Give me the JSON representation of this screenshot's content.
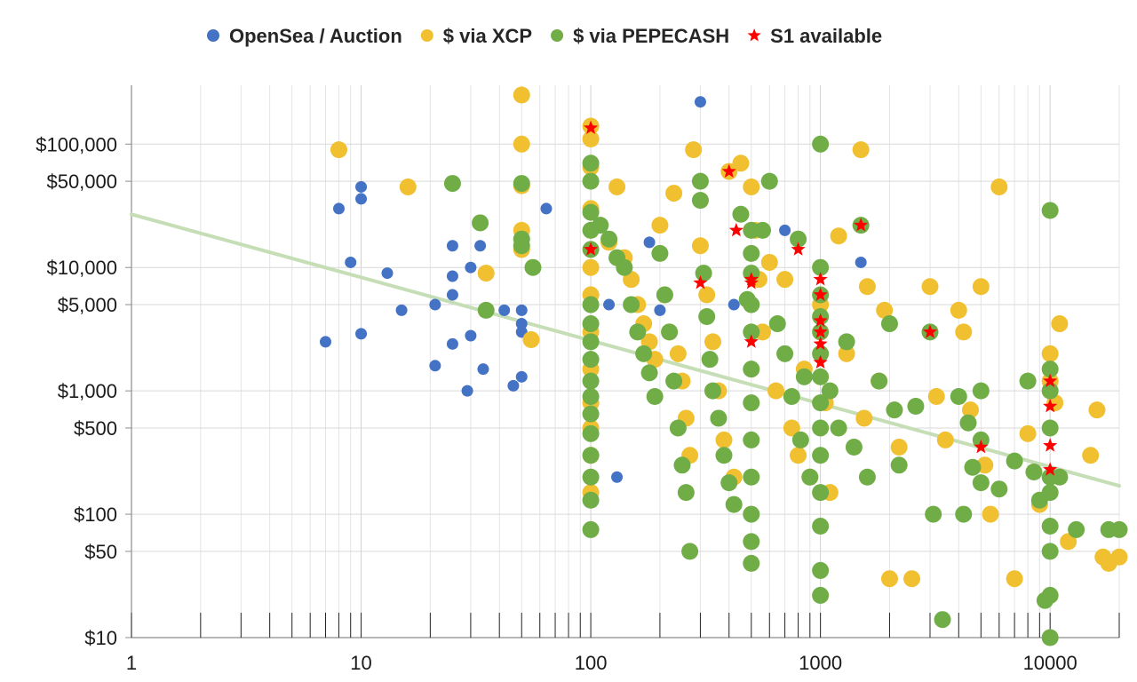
{
  "chart_data": {
    "type": "scatter",
    "title": "",
    "xlabel": "",
    "ylabel": "",
    "x_scale": "log",
    "y_scale": "log",
    "xlim": [
      1,
      20000
    ],
    "ylim": [
      10,
      300000
    ],
    "grid": true,
    "legend_position": "top",
    "x_tick_labels": [
      {
        "value": 1,
        "label": "1"
      },
      {
        "value": 10,
        "label": "10"
      },
      {
        "value": 100,
        "label": "100"
      },
      {
        "value": 1000,
        "label": "1000"
      },
      {
        "value": 10000,
        "label": "10000"
      }
    ],
    "y_tick_labels": [
      {
        "value": 10,
        "label": "$10"
      },
      {
        "value": 50,
        "label": "$50"
      },
      {
        "value": 100,
        "label": "$100"
      },
      {
        "value": 500,
        "label": "$500"
      },
      {
        "value": 1000,
        "label": "$1,000"
      },
      {
        "value": 5000,
        "label": "$5,000"
      },
      {
        "value": 10000,
        "label": "$10,000"
      },
      {
        "value": 50000,
        "label": "$50,000"
      },
      {
        "value": 100000,
        "label": "$100,000"
      }
    ],
    "trendline": {
      "color": "#c5deb5",
      "points": [
        [
          1,
          27000
        ],
        [
          20000,
          170
        ]
      ]
    },
    "series": [
      {
        "name": "OpenSea / Auction",
        "marker": "circle",
        "color": "#4472c4",
        "points": [
          [
            7,
            2500
          ],
          [
            8,
            30000
          ],
          [
            9,
            11000
          ],
          [
            10,
            45000
          ],
          [
            10,
            36000
          ],
          [
            10,
            2900
          ],
          [
            13,
            9000
          ],
          [
            15,
            4500
          ],
          [
            21,
            5000
          ],
          [
            21,
            1600
          ],
          [
            25,
            15000
          ],
          [
            25,
            8500
          ],
          [
            25,
            6000
          ],
          [
            25,
            2400
          ],
          [
            29,
            1000
          ],
          [
            30,
            10000
          ],
          [
            30,
            2800
          ],
          [
            33,
            15000
          ],
          [
            34,
            1500
          ],
          [
            42,
            4500
          ],
          [
            46,
            1100
          ],
          [
            50,
            4500
          ],
          [
            50,
            3500
          ],
          [
            50,
            3000
          ],
          [
            50,
            1300
          ],
          [
            64,
            30000
          ],
          [
            120,
            5000
          ],
          [
            130,
            200
          ],
          [
            180,
            16000
          ],
          [
            200,
            4500
          ],
          [
            300,
            220000
          ],
          [
            420,
            5000
          ],
          [
            500,
            1500
          ],
          [
            700,
            20000
          ],
          [
            1500,
            11000
          ]
        ]
      },
      {
        "name": "$ via XCP",
        "marker": "circle",
        "color": "#f0c030",
        "points": [
          [
            8,
            90000
          ],
          [
            16,
            45000
          ],
          [
            35,
            9000
          ],
          [
            50,
            250000
          ],
          [
            50,
            100000
          ],
          [
            50,
            46000
          ],
          [
            50,
            20000
          ],
          [
            50,
            14000
          ],
          [
            55,
            2600
          ],
          [
            100,
            140000
          ],
          [
            100,
            110000
          ],
          [
            100,
            65000
          ],
          [
            100,
            30000
          ],
          [
            100,
            10000
          ],
          [
            100,
            6000
          ],
          [
            100,
            3000
          ],
          [
            100,
            1500
          ],
          [
            100,
            800
          ],
          [
            100,
            500
          ],
          [
            100,
            300
          ],
          [
            100,
            150
          ],
          [
            120,
            16000
          ],
          [
            130,
            45000
          ],
          [
            140,
            12000
          ],
          [
            150,
            8000
          ],
          [
            160,
            5000
          ],
          [
            170,
            3500
          ],
          [
            180,
            2500
          ],
          [
            190,
            1800
          ],
          [
            200,
            22000
          ],
          [
            210,
            6000
          ],
          [
            220,
            3000
          ],
          [
            230,
            40000
          ],
          [
            240,
            2000
          ],
          [
            250,
            1200
          ],
          [
            260,
            600
          ],
          [
            270,
            300
          ],
          [
            280,
            90000
          ],
          [
            300,
            15000
          ],
          [
            320,
            6000
          ],
          [
            340,
            2500
          ],
          [
            360,
            1000
          ],
          [
            380,
            400
          ],
          [
            400,
            60000
          ],
          [
            420,
            200
          ],
          [
            450,
            70000
          ],
          [
            500,
            45000
          ],
          [
            520,
            20000
          ],
          [
            540,
            8000
          ],
          [
            560,
            3000
          ],
          [
            600,
            11000
          ],
          [
            640,
            1000
          ],
          [
            700,
            8000
          ],
          [
            750,
            500
          ],
          [
            800,
            300
          ],
          [
            850,
            1500
          ],
          [
            900,
            200
          ],
          [
            1000,
            5000
          ],
          [
            1050,
            800
          ],
          [
            1100,
            150
          ],
          [
            1200,
            18000
          ],
          [
            1300,
            2000
          ],
          [
            1500,
            90000
          ],
          [
            1550,
            600
          ],
          [
            1600,
            7000
          ],
          [
            1800,
            1200
          ],
          [
            1900,
            4500
          ],
          [
            2000,
            30
          ],
          [
            2200,
            350
          ],
          [
            2500,
            30
          ],
          [
            3000,
            7000
          ],
          [
            3200,
            900
          ],
          [
            3500,
            400
          ],
          [
            4000,
            4500
          ],
          [
            4200,
            3000
          ],
          [
            4500,
            700
          ],
          [
            5000,
            7000
          ],
          [
            5200,
            250
          ],
          [
            5500,
            100
          ],
          [
            6000,
            45000
          ],
          [
            7000,
            30
          ],
          [
            8000,
            450
          ],
          [
            9000,
            120
          ],
          [
            10000,
            2000
          ],
          [
            10000,
            1200
          ],
          [
            10500,
            800
          ],
          [
            11000,
            3500
          ],
          [
            12000,
            60
          ],
          [
            15000,
            300
          ],
          [
            16000,
            700
          ],
          [
            17000,
            45
          ],
          [
            18000,
            40
          ],
          [
            20000,
            45
          ]
        ]
      },
      {
        "name": "$ via PEPECASH",
        "marker": "circle",
        "color": "#70ad47",
        "points": [
          [
            25,
            48000
          ],
          [
            33,
            23000
          ],
          [
            35,
            4500
          ],
          [
            50,
            48000
          ],
          [
            50,
            17000
          ],
          [
            50,
            15000
          ],
          [
            56,
            10000
          ],
          [
            100,
            70000
          ],
          [
            100,
            50000
          ],
          [
            100,
            28000
          ],
          [
            100,
            20000
          ],
          [
            100,
            14000
          ],
          [
            100,
            5000
          ],
          [
            100,
            3500
          ],
          [
            100,
            2500
          ],
          [
            100,
            1800
          ],
          [
            100,
            1200
          ],
          [
            100,
            900
          ],
          [
            100,
            650
          ],
          [
            100,
            450
          ],
          [
            100,
            300
          ],
          [
            100,
            200
          ],
          [
            100,
            130
          ],
          [
            100,
            75
          ],
          [
            110,
            22000
          ],
          [
            120,
            17000
          ],
          [
            130,
            12000
          ],
          [
            140,
            10000
          ],
          [
            150,
            5000
          ],
          [
            160,
            3000
          ],
          [
            170,
            2000
          ],
          [
            180,
            1400
          ],
          [
            190,
            900
          ],
          [
            200,
            13000
          ],
          [
            210,
            6000
          ],
          [
            220,
            3000
          ],
          [
            230,
            1200
          ],
          [
            240,
            500
          ],
          [
            250,
            250
          ],
          [
            260,
            150
          ],
          [
            270,
            50
          ],
          [
            300,
            50000
          ],
          [
            300,
            35000
          ],
          [
            310,
            9000
          ],
          [
            320,
            4000
          ],
          [
            330,
            1800
          ],
          [
            340,
            1000
          ],
          [
            360,
            600
          ],
          [
            380,
            300
          ],
          [
            400,
            180
          ],
          [
            420,
            120
          ],
          [
            450,
            27000
          ],
          [
            480,
            5500
          ],
          [
            500,
            20000
          ],
          [
            500,
            13000
          ],
          [
            500,
            9000
          ],
          [
            500,
            5000
          ],
          [
            500,
            3000
          ],
          [
            500,
            1500
          ],
          [
            500,
            800
          ],
          [
            500,
            400
          ],
          [
            500,
            200
          ],
          [
            500,
            100
          ],
          [
            500,
            60
          ],
          [
            500,
            40
          ],
          [
            560,
            20000
          ],
          [
            600,
            50000
          ],
          [
            650,
            3500
          ],
          [
            700,
            2000
          ],
          [
            750,
            900
          ],
          [
            800,
            17000
          ],
          [
            820,
            400
          ],
          [
            850,
            1300
          ],
          [
            900,
            200
          ],
          [
            1000,
            100000
          ],
          [
            1000,
            10000
          ],
          [
            1000,
            6000
          ],
          [
            1000,
            4000
          ],
          [
            1000,
            3000
          ],
          [
            1000,
            2000
          ],
          [
            1000,
            1300
          ],
          [
            1000,
            800
          ],
          [
            1000,
            500
          ],
          [
            1000,
            300
          ],
          [
            1000,
            150
          ],
          [
            1000,
            80
          ],
          [
            1000,
            35
          ],
          [
            1000,
            22
          ],
          [
            1100,
            1000
          ],
          [
            1200,
            500
          ],
          [
            1300,
            2500
          ],
          [
            1400,
            350
          ],
          [
            1500,
            22000
          ],
          [
            1600,
            200
          ],
          [
            1800,
            1200
          ],
          [
            2000,
            3500
          ],
          [
            2100,
            700
          ],
          [
            2200,
            250
          ],
          [
            2600,
            750
          ],
          [
            3000,
            3000
          ],
          [
            3100,
            100
          ],
          [
            3400,
            14
          ],
          [
            4000,
            900
          ],
          [
            4200,
            100
          ],
          [
            4400,
            550
          ],
          [
            4600,
            240
          ],
          [
            5000,
            1000
          ],
          [
            5000,
            400
          ],
          [
            5000,
            180
          ],
          [
            6000,
            160
          ],
          [
            7000,
            270
          ],
          [
            8000,
            1200
          ],
          [
            8500,
            220
          ],
          [
            9000,
            130
          ],
          [
            9500,
            20
          ],
          [
            10000,
            29000
          ],
          [
            10000,
            1500
          ],
          [
            10000,
            1000
          ],
          [
            10000,
            500
          ],
          [
            10000,
            200
          ],
          [
            10000,
            150
          ],
          [
            10000,
            80
          ],
          [
            10000,
            50
          ],
          [
            10000,
            22
          ],
          [
            10000,
            10
          ],
          [
            11000,
            200
          ],
          [
            13000,
            75
          ],
          [
            18000,
            75
          ],
          [
            20000,
            75
          ]
        ]
      },
      {
        "name": "S1 available",
        "marker": "star",
        "color": "#ff0000",
        "points": [
          [
            100,
            135000
          ],
          [
            100,
            14000
          ],
          [
            300,
            7500
          ],
          [
            400,
            60000
          ],
          [
            430,
            20000
          ],
          [
            500,
            8000
          ],
          [
            500,
            7500
          ],
          [
            500,
            2500
          ],
          [
            800,
            14000
          ],
          [
            1000,
            8000
          ],
          [
            1000,
            6000
          ],
          [
            1000,
            3700
          ],
          [
            1000,
            3000
          ],
          [
            1000,
            2400
          ],
          [
            1000,
            1700
          ],
          [
            1500,
            22000
          ],
          [
            3000,
            3000
          ],
          [
            5000,
            350
          ],
          [
            10000,
            1200
          ],
          [
            10000,
            750
          ],
          [
            10000,
            360
          ],
          [
            10000,
            230
          ]
        ]
      }
    ]
  }
}
